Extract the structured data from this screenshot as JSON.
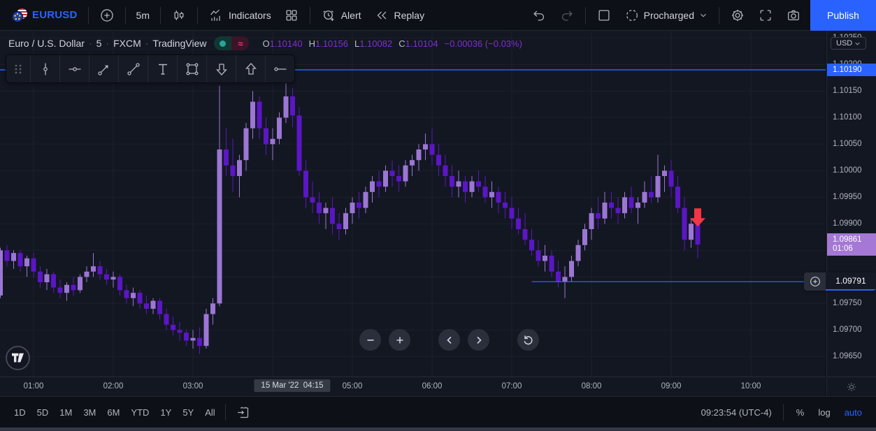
{
  "topbar": {
    "symbol": "EURUSD",
    "timeframe": "5m",
    "indicators_label": "Indicators",
    "alert_label": "Alert",
    "replay_label": "Replay",
    "account_name": "Procharged",
    "publish_label": "Publish"
  },
  "chart_header": {
    "title": "Euro / U.S. Dollar",
    "sep": "·",
    "interval": "5",
    "exchange": "FXCM",
    "platform": "TradingView",
    "ohlc_items": [
      {
        "label": "O",
        "value": "1.10140"
      },
      {
        "label": "H",
        "value": "1.10156"
      },
      {
        "label": "L",
        "value": "1.10082"
      },
      {
        "label": "C",
        "value": "1.10104"
      }
    ],
    "change": "−0.00036 (−0.03%)",
    "value_color": "#7e2fd3"
  },
  "price_scale": {
    "currency": "USD",
    "ticks": [
      "1.10250",
      "1.10200",
      "1.10150",
      "1.10100",
      "1.10050",
      "1.10000",
      "1.09950",
      "1.09900",
      "1.09850",
      "1.09800",
      "1.09750",
      "1.09700",
      "1.09650"
    ],
    "line_label_price": "1.10190",
    "last_price": "1.09861",
    "bar_countdown": "01:06",
    "hline_price": "1.09791"
  },
  "time_scale": {
    "ticks": [
      "01:00",
      "02:00",
      "03:00",
      "05:00",
      "06:00",
      "07:00",
      "08:00",
      "09:00",
      "10:00"
    ],
    "crosshair_label": "15 Mar '22  04:15"
  },
  "bottom_bar": {
    "ranges": [
      "1D",
      "5D",
      "1M",
      "3M",
      "6M",
      "YTD",
      "1Y",
      "5Y",
      "All"
    ],
    "clock": "09:23:54 (UTC-4)",
    "percent_label": "%",
    "log_label": "log",
    "auto_label": "auto"
  },
  "status_pill": {
    "delayed_glyph": "≈",
    "open_color": "#26a69a",
    "delayed_color": "#f23674"
  },
  "chart_data": {
    "type": "candlestick",
    "symbol": "EURUSD",
    "interval_minutes": 5,
    "title": "Euro / U.S. Dollar · 5 · FXCM",
    "colors": {
      "up": "#9c76d4",
      "down": "#5b16c5",
      "line": "#2962FF",
      "marker": "#f23645",
      "grid": "#1c202c"
    },
    "ylim": [
      1.0962,
      1.1026
    ],
    "price_grid_step": 0.0005,
    "price_grid_top": 1.1025,
    "x_gridlines": [
      "01:00",
      "02:00",
      "03:00",
      "04:00",
      "05:00",
      "06:00",
      "07:00",
      "08:00",
      "09:00",
      "10:00"
    ],
    "lines": [
      {
        "price": 1.1019,
        "from": null,
        "full_width": true
      },
      {
        "price": 1.09791,
        "from": "07:15",
        "full_width": false
      }
    ],
    "marker": {
      "type": "arrow-down",
      "time": "09:20",
      "price": 1.09895
    },
    "candles": [
      [
        "00:35",
        1.09765,
        1.09855,
        1.0976,
        1.0985
      ],
      [
        "00:40",
        1.0985,
        1.0986,
        1.0982,
        1.0983
      ],
      [
        "00:45",
        1.0983,
        1.0985,
        1.09815,
        1.09845
      ],
      [
        "00:50",
        1.09845,
        1.0985,
        1.0981,
        1.0982
      ],
      [
        "00:55",
        1.0982,
        1.0984,
        1.098,
        1.09835
      ],
      [
        "01:00",
        1.09835,
        1.09845,
        1.098,
        1.0981
      ],
      [
        "01:05",
        1.0981,
        1.0982,
        1.0978,
        1.0979
      ],
      [
        "01:10",
        1.0979,
        1.09815,
        1.09775,
        1.09805
      ],
      [
        "01:15",
        1.09805,
        1.0981,
        1.0977,
        1.0978
      ],
      [
        "01:20",
        1.0978,
        1.09795,
        1.0976,
        1.0977
      ],
      [
        "01:25",
        1.0977,
        1.0979,
        1.09755,
        1.09785
      ],
      [
        "01:30",
        1.09785,
        1.098,
        1.09765,
        1.09775
      ],
      [
        "01:35",
        1.09775,
        1.09805,
        1.0977,
        1.098
      ],
      [
        "01:40",
        1.098,
        1.0982,
        1.0979,
        1.0981
      ],
      [
        "01:45",
        1.0981,
        1.09845,
        1.098,
        1.0982
      ],
      [
        "01:50",
        1.0982,
        1.0983,
        1.09795,
        1.09805
      ],
      [
        "01:55",
        1.09805,
        1.09815,
        1.09785,
        1.09795
      ],
      [
        "02:00",
        1.09795,
        1.0981,
        1.0978,
        1.098
      ],
      [
        "02:05",
        1.098,
        1.09805,
        1.09765,
        1.09775
      ],
      [
        "02:10",
        1.09775,
        1.09785,
        1.0975,
        1.0976
      ],
      [
        "02:15",
        1.0976,
        1.0978,
        1.09745,
        1.0977
      ],
      [
        "02:20",
        1.0977,
        1.09775,
        1.0974,
        1.0975
      ],
      [
        "02:25",
        1.0975,
        1.09765,
        1.0973,
        1.0974
      ],
      [
        "02:30",
        1.0974,
        1.0976,
        1.0973,
        1.09755
      ],
      [
        "02:35",
        1.09755,
        1.0976,
        1.0972,
        1.0973
      ],
      [
        "02:40",
        1.0973,
        1.0974,
        1.097,
        1.0971
      ],
      [
        "02:45",
        1.0971,
        1.09725,
        1.0969,
        1.097
      ],
      [
        "02:50",
        1.097,
        1.09715,
        1.0968,
        1.09695
      ],
      [
        "02:55",
        1.09695,
        1.097,
        1.0967,
        1.0968
      ],
      [
        "03:00",
        1.0968,
        1.097,
        1.09665,
        1.09685
      ],
      [
        "03:05",
        1.09685,
        1.09705,
        1.09655,
        1.0967
      ],
      [
        "03:10",
        1.0967,
        1.0974,
        1.09665,
        1.0973
      ],
      [
        "03:15",
        1.0973,
        1.0976,
        1.0971,
        1.0975
      ],
      [
        "03:20",
        1.0975,
        1.1016,
        1.09745,
        1.1004
      ],
      [
        "03:25",
        1.1004,
        1.1008,
        1.0999,
        1.1001
      ],
      [
        "03:30",
        1.1001,
        1.1006,
        1.0996,
        1.0999
      ],
      [
        "03:35",
        1.0999,
        1.1003,
        1.0995,
        1.1002
      ],
      [
        "03:40",
        1.1002,
        1.1009,
        1.1,
        1.1008
      ],
      [
        "03:45",
        1.1008,
        1.1015,
        1.1006,
        1.1013
      ],
      [
        "03:50",
        1.1013,
        1.1014,
        1.1006,
        1.1008
      ],
      [
        "03:55",
        1.1008,
        1.101,
        1.1003,
        1.1005
      ],
      [
        "04:00",
        1.1005,
        1.1008,
        1.1002,
        1.1006
      ],
      [
        "04:05",
        1.1006,
        1.1011,
        1.1005,
        1.101
      ],
      [
        "04:10",
        1.101,
        1.10175,
        1.1009,
        1.1014
      ],
      [
        "04:15",
        1.1014,
        1.10156,
        1.10082,
        1.10104
      ],
      [
        "04:20",
        1.10104,
        1.1012,
        1.0999,
        1.1
      ],
      [
        "04:25",
        1.1,
        1.1002,
        1.0993,
        1.0995
      ],
      [
        "04:30",
        1.0995,
        1.0998,
        1.0992,
        1.0994
      ],
      [
        "04:35",
        1.0994,
        1.0996,
        1.099,
        1.0992
      ],
      [
        "04:40",
        1.0992,
        1.0994,
        1.0989,
        1.0993
      ],
      [
        "04:45",
        1.0993,
        1.0995,
        1.0988,
        1.099
      ],
      [
        "04:50",
        1.099,
        1.0992,
        1.0987,
        1.0989
      ],
      [
        "04:55",
        1.0989,
        1.0993,
        1.0988,
        1.0992
      ],
      [
        "05:00",
        1.0992,
        1.0995,
        1.099,
        1.0994
      ],
      [
        "05:05",
        1.0994,
        1.0996,
        1.0991,
        1.0993
      ],
      [
        "05:10",
        1.0993,
        1.0997,
        1.0992,
        1.0996
      ],
      [
        "05:15",
        1.0996,
        1.0999,
        1.0994,
        1.0998
      ],
      [
        "05:20",
        1.0998,
        1.1,
        1.0995,
        1.0997
      ],
      [
        "05:25",
        1.0997,
        1.1001,
        1.0996,
        1.1
      ],
      [
        "05:30",
        1.1,
        1.1002,
        1.0997,
        1.0999
      ],
      [
        "05:35",
        1.0999,
        1.1001,
        1.0996,
        1.0998
      ],
      [
        "05:40",
        1.0998,
        1.1002,
        1.0997,
        1.1001
      ],
      [
        "05:45",
        1.1001,
        1.1003,
        1.0999,
        1.1002
      ],
      [
        "05:50",
        1.1002,
        1.1005,
        1.1,
        1.1004
      ],
      [
        "05:55",
        1.1004,
        1.1007,
        1.1002,
        1.1005
      ],
      [
        "06:00",
        1.1005,
        1.1008,
        1.1001,
        1.1003
      ],
      [
        "06:05",
        1.1003,
        1.1005,
        1.0999,
        1.1001
      ],
      [
        "06:10",
        1.1001,
        1.1003,
        1.0997,
        1.0999
      ],
      [
        "06:15",
        1.0999,
        1.1001,
        1.0995,
        1.0997
      ],
      [
        "06:20",
        1.0997,
        1.1,
        1.0995,
        1.0998
      ],
      [
        "06:25",
        1.0998,
        1.0999,
        1.0994,
        1.0996
      ],
      [
        "06:30",
        1.0996,
        1.0999,
        1.0995,
        1.0998
      ],
      [
        "06:35",
        1.0998,
        1.1,
        1.0996,
        1.0997
      ],
      [
        "06:40",
        1.0997,
        1.0999,
        1.0994,
        1.0995
      ],
      [
        "06:45",
        1.0995,
        1.0998,
        1.0993,
        1.0996
      ],
      [
        "06:50",
        1.0996,
        1.0997,
        1.0992,
        1.0994
      ],
      [
        "06:55",
        1.0994,
        1.0996,
        1.0991,
        1.0993
      ],
      [
        "07:00",
        1.0993,
        1.0995,
        1.0989,
        1.0991
      ],
      [
        "07:05",
        1.0991,
        1.0993,
        1.0988,
        1.0989
      ],
      [
        "07:10",
        1.0989,
        1.0992,
        1.0986,
        1.0987
      ],
      [
        "07:15",
        1.0987,
        1.0989,
        1.0984,
        1.0985
      ],
      [
        "07:20",
        1.0985,
        1.0987,
        1.0982,
        1.0983
      ],
      [
        "07:25",
        1.0983,
        1.0986,
        1.0981,
        1.0984
      ],
      [
        "07:30",
        1.0984,
        1.0985,
        1.098,
        1.0981
      ],
      [
        "07:35",
        1.0981,
        1.0983,
        1.0978,
        1.0979
      ],
      [
        "07:40",
        1.0979,
        1.0982,
        1.0976,
        1.098
      ],
      [
        "07:45",
        1.098,
        1.0984,
        1.0979,
        1.0983
      ],
      [
        "07:50",
        1.0983,
        1.0987,
        1.0982,
        1.0986
      ],
      [
        "07:55",
        1.0986,
        1.099,
        1.0985,
        1.0989
      ],
      [
        "08:00",
        1.0989,
        1.0993,
        1.0987,
        1.0992
      ],
      [
        "08:05",
        1.0992,
        1.0995,
        1.0989,
        1.0991
      ],
      [
        "08:10",
        1.0991,
        1.0996,
        1.099,
        1.0994
      ],
      [
        "08:15",
        1.0994,
        1.0996,
        1.0991,
        1.0993
      ],
      [
        "08:20",
        1.0993,
        1.0995,
        1.099,
        1.0992
      ],
      [
        "08:25",
        1.0992,
        1.0996,
        1.0991,
        1.0995
      ],
      [
        "08:30",
        1.0995,
        1.0997,
        1.0992,
        1.0993
      ],
      [
        "08:35",
        1.0993,
        1.0995,
        1.099,
        1.0994
      ],
      [
        "08:40",
        1.0994,
        1.0998,
        1.0993,
        1.0996
      ],
      [
        "08:45",
        1.0996,
        1.0999,
        1.0994,
        1.0995
      ],
      [
        "08:50",
        1.0995,
        1.1003,
        1.0994,
        1.0999
      ],
      [
        "08:55",
        1.0999,
        1.1001,
        1.0996,
        1.1
      ],
      [
        "09:00",
        1.1,
        1.1002,
        1.0995,
        1.0997
      ],
      [
        "09:05",
        1.0997,
        1.0999,
        1.0992,
        1.0993
      ],
      [
        "09:10",
        1.0993,
        1.0995,
        1.0985,
        1.0987
      ],
      [
        "09:15",
        1.0987,
        1.0991,
        1.09855,
        1.099
      ],
      [
        "09:20",
        1.099,
        1.09905,
        1.09835,
        1.09861
      ]
    ]
  }
}
